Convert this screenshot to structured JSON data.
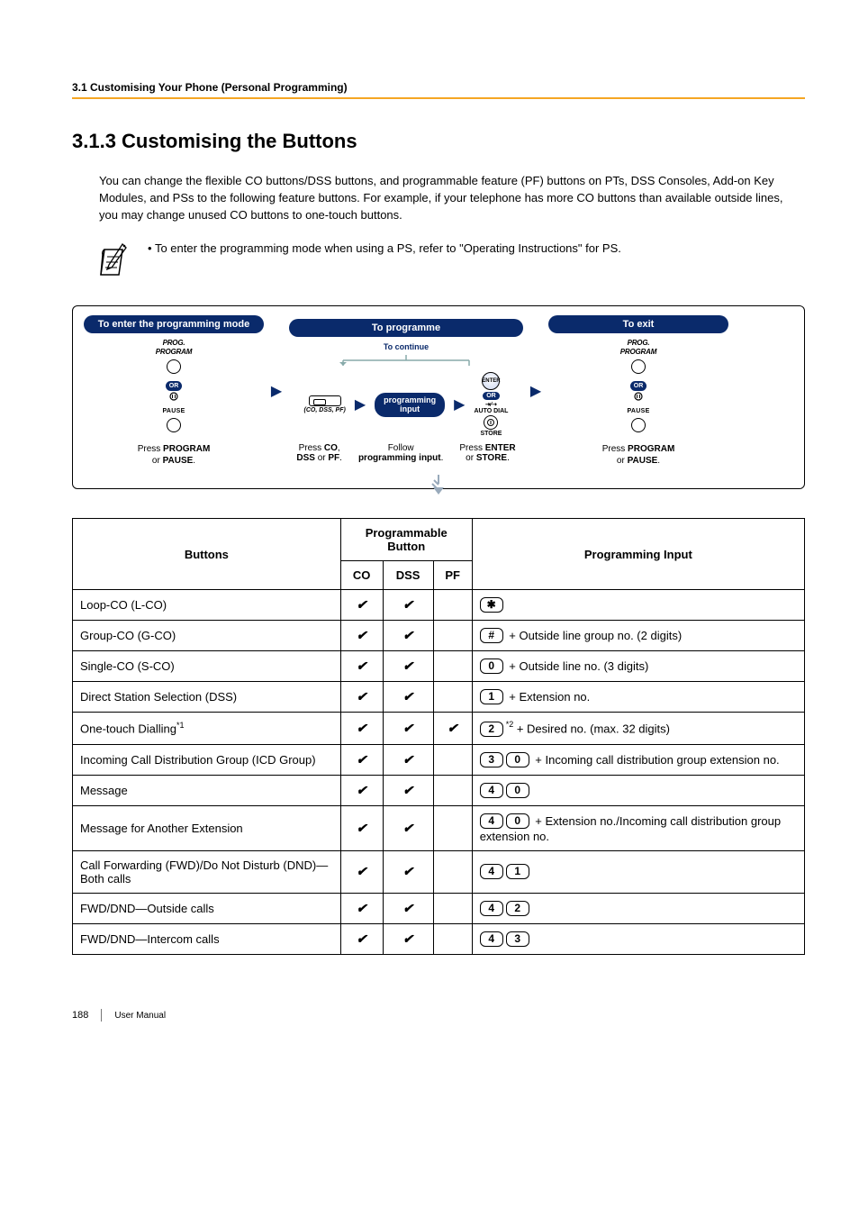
{
  "breadcrumb": "3.1 Customising Your Phone (Personal Programming)",
  "title": "3.1.3    Customising the Buttons",
  "intro": "You can change the flexible CO buttons/DSS buttons, and programmable feature (PF) buttons on PTs, DSS Consoles, Add-on Key Modules, and PSs to the following feature buttons. For example, if your telephone has more CO buttons than available outside lines, you may change unused CO buttons to one-touch buttons.",
  "note": "To enter the programming mode when using a PS, refer to \"Operating Instructions\" for PS.",
  "flow": {
    "enter_header": "To enter the programming mode",
    "programme_header": "To programme",
    "exit_header": "To exit",
    "continue": "To continue",
    "col1_caption1": "Press ",
    "col1_bold1": "PROGRAM",
    "col1_or": "or ",
    "col1_bold2": "PAUSE",
    "col2_caption": "Press ",
    "col2_bold": "CO",
    "col2_rest": "DSS",
    "col2_or": " or ",
    "col2_pf": "PF",
    "col2b_caption": "Follow",
    "col2b_bold": "programming input",
    "col2c_caption": "Press ",
    "col2c_bold": "ENTER",
    "col2c_or": "or ",
    "col2c_bold2": "STORE",
    "col3_caption1": "Press ",
    "col3_bold1": "PROGRAM",
    "col3_or": "or ",
    "col3_bold2": "PAUSE",
    "bubble": "programming\ninput",
    "prog_label": "PROG.\nPROGRAM",
    "or_pill": "OR",
    "pause": "PAUSE",
    "co_sub": "(CO, DSS, PF)",
    "enter_small": "ENTER",
    "autodial": "AUTO DIAL",
    "store": "STORE"
  },
  "table": {
    "head_buttons": "Buttons",
    "head_prog": "Programmable Button",
    "head_pi": "Programming Input",
    "head_co": "CO",
    "head_dss": "DSS",
    "head_pf": "PF",
    "rows": [
      {
        "name": "Loop-CO (L-CO)",
        "co": true,
        "dss": true,
        "pf": false,
        "keys": [
          "*"
        ],
        "text": ""
      },
      {
        "name": "Group-CO (G-CO)",
        "co": true,
        "dss": true,
        "pf": false,
        "keys": [
          "#"
        ],
        "text": " + Outside line group no. (2 digits)"
      },
      {
        "name": "Single-CO (S-CO)",
        "co": true,
        "dss": true,
        "pf": false,
        "keys": [
          "0"
        ],
        "text": " + Outside line no. (3 digits)"
      },
      {
        "name": "Direct Station Selection (DSS)",
        "co": true,
        "dss": true,
        "pf": false,
        "keys": [
          "1"
        ],
        "text": " + Extension no."
      },
      {
        "name": "One-touch Dialling*1",
        "co": true,
        "dss": true,
        "pf": true,
        "keys": [
          "2"
        ],
        "sup": "*2",
        "text": " + Desired no. (max. 32 digits)"
      },
      {
        "name": "Incoming Call Distribution Group (ICD Group)",
        "co": true,
        "dss": true,
        "pf": false,
        "keys": [
          "3",
          "0"
        ],
        "text": " + Incoming call distribution group extension no."
      },
      {
        "name": "Message",
        "co": true,
        "dss": true,
        "pf": false,
        "keys": [
          "4",
          "0"
        ],
        "text": ""
      },
      {
        "name": "Message for Another Extension",
        "co": true,
        "dss": true,
        "pf": false,
        "keys": [
          "4",
          "0"
        ],
        "text": " + Extension no./Incoming call distribution group extension no."
      },
      {
        "name": "Call Forwarding (FWD)/Do Not Disturb (DND)—Both calls",
        "co": true,
        "dss": true,
        "pf": false,
        "keys": [
          "4",
          "1"
        ],
        "text": ""
      },
      {
        "name": "FWD/DND—Outside calls",
        "co": true,
        "dss": true,
        "pf": false,
        "keys": [
          "4",
          "2"
        ],
        "text": ""
      },
      {
        "name": "FWD/DND—Intercom calls",
        "co": true,
        "dss": true,
        "pf": false,
        "keys": [
          "4",
          "3"
        ],
        "text": ""
      }
    ]
  },
  "footer": {
    "page": "188",
    "label": "User Manual"
  },
  "colors": {
    "accent": "#f5a623",
    "navy": "#0a2a6b"
  }
}
